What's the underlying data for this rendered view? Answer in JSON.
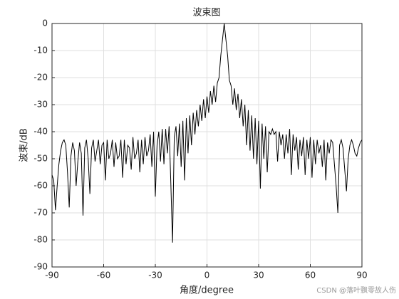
{
  "chart_data": {
    "type": "line",
    "title": "波束图",
    "x_label": "角度/degree",
    "y_label": "波束/dB",
    "watermark": "CSDN @落叶飘零故人伤",
    "xlim": [
      -90,
      90
    ],
    "xticks": [
      -90,
      -60,
      -30,
      0,
      30,
      60,
      90
    ],
    "ylim": [
      -90,
      0
    ],
    "yticks": [
      0,
      -10,
      -20,
      -30,
      -40,
      -50,
      -60,
      -70,
      -80,
      -90
    ],
    "grid": true,
    "x": [
      -90,
      -89,
      -88,
      -87,
      -86,
      -85,
      -84,
      -83,
      -82,
      -81,
      -80,
      -79,
      -78,
      -77,
      -76,
      -75,
      -74,
      -73,
      -72,
      -71,
      -70,
      -69,
      -68,
      -67,
      -66,
      -65,
      -64,
      -63,
      -62,
      -61,
      -60,
      -59,
      -58,
      -57,
      -56,
      -55,
      -54,
      -53,
      -52,
      -51,
      -50,
      -49,
      -48,
      -47,
      -46,
      -45,
      -44,
      -43,
      -42,
      -41,
      -40,
      -39,
      -38,
      -37,
      -36,
      -35,
      -34,
      -33,
      -32,
      -31,
      -30,
      -29,
      -28,
      -27,
      -26,
      -25,
      -24,
      -23,
      -22,
      -21,
      -20,
      -19,
      -18,
      -17,
      -16,
      -15,
      -14,
      -13,
      -12,
      -11,
      -10,
      -9,
      -8,
      -7,
      -6,
      -5,
      -4,
      -3,
      -2,
      -1,
      0,
      1,
      2,
      3,
      4,
      5,
      6,
      7,
      8,
      9,
      10,
      11,
      12,
      13,
      14,
      15,
      16,
      17,
      18,
      19,
      20,
      21,
      22,
      23,
      24,
      25,
      26,
      27,
      28,
      29,
      30,
      31,
      32,
      33,
      34,
      35,
      36,
      37,
      38,
      39,
      40,
      41,
      42,
      43,
      44,
      45,
      46,
      47,
      48,
      49,
      50,
      51,
      52,
      53,
      54,
      55,
      56,
      57,
      58,
      59,
      60,
      61,
      62,
      63,
      64,
      65,
      66,
      67,
      68,
      69,
      70,
      71,
      72,
      73,
      74,
      75,
      76,
      77,
      78,
      79,
      80,
      81,
      82,
      83,
      84,
      85,
      86,
      87,
      88,
      89,
      90
    ],
    "series": [
      {
        "color": "#000000",
        "values": [
          -56,
          -58,
          -69,
          -60,
          -52,
          -47,
          -44,
          -43,
          -45,
          -55,
          -68,
          -49,
          -44,
          -47,
          -60,
          -51,
          -44,
          -48,
          -71,
          -46,
          -43,
          -50,
          -63,
          -46,
          -43,
          -51,
          -47,
          -43,
          -52,
          -45,
          -44,
          -58,
          -43,
          -50,
          -48,
          -43,
          -53,
          -44,
          -50,
          -49,
          -43,
          -57,
          -43,
          -52,
          -45,
          -46,
          -54,
          -42,
          -50,
          -48,
          -43,
          -55,
          -43,
          -52,
          -42,
          -49,
          -47,
          -41,
          -53,
          -40,
          -64,
          -45,
          -40,
          -51,
          -39,
          -52,
          -39,
          -48,
          -38,
          -59,
          -81,
          -42,
          -38,
          -49,
          -37,
          -53,
          -36,
          -58,
          -35,
          -48,
          -34,
          -45,
          -33,
          -41,
          -32,
          -38,
          -30,
          -36,
          -28,
          -35,
          -27,
          -33,
          -25,
          -30,
          -23,
          -29,
          -22,
          -20,
          -12,
          -6,
          0,
          -6,
          -12,
          -21,
          -23,
          -30,
          -24,
          -32,
          -26,
          -35,
          -28,
          -38,
          -30,
          -45,
          -32,
          -47,
          -34,
          -50,
          -35,
          -52,
          -36,
          -61,
          -37,
          -50,
          -38,
          -55,
          -40,
          -41,
          -39,
          -41,
          -40,
          -51,
          -40,
          -45,
          -41,
          -50,
          -41,
          -48,
          -39,
          -56,
          -41,
          -47,
          -42,
          -54,
          -43,
          -49,
          -42,
          -56,
          -43,
          -50,
          -42,
          -57,
          -43,
          -52,
          -43,
          -48,
          -45,
          -53,
          -43,
          -58,
          -44,
          -48,
          -43,
          -44,
          -52,
          -60,
          -70,
          -45,
          -43,
          -46,
          -54,
          -62,
          -50,
          -45,
          -43,
          -45,
          -48,
          -49,
          -46,
          -44,
          -43
        ]
      }
    ]
  }
}
